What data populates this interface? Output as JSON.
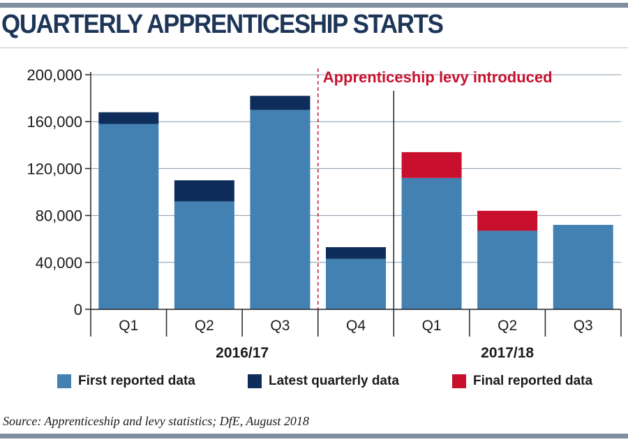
{
  "title": "QUARTERLY APPRENTICESHIP STARTS",
  "source": "Source: Apprenticeship and levy statistics; DfE, August 2018",
  "colors": {
    "first_reported": "#4281b2",
    "latest_quarterly": "#0f2d5a",
    "final_reported": "#c8102e",
    "annotation": "#c8102e",
    "grid": "#8a9aaa",
    "axis": "#222222",
    "title": "#1d3557"
  },
  "chart_data": {
    "type": "bar",
    "stacked": true,
    "title": "QUARTERLY APPRENTICESHIP STARTS",
    "xlabel": "",
    "ylabel": "",
    "ylim": [
      0,
      200000
    ],
    "yticks": [
      0,
      40000,
      80000,
      120000,
      160000,
      200000
    ],
    "ytick_labels": [
      "0",
      "40,000",
      "80,000",
      "120,000",
      "160,000",
      "200,000"
    ],
    "grid": true,
    "legend_position": "bottom",
    "categories": [
      "Q1",
      "Q2",
      "Q3",
      "Q4",
      "Q1",
      "Q2",
      "Q3"
    ],
    "groups": [
      {
        "label": "2016/17",
        "categories": [
          "Q1",
          "Q2",
          "Q3",
          "Q4"
        ]
      },
      {
        "label": "2017/18",
        "categories": [
          "Q1",
          "Q2",
          "Q3"
        ]
      }
    ],
    "series": [
      {
        "name": "First reported data",
        "color": "#4281b2",
        "values": [
          158000,
          92000,
          170000,
          43000,
          112000,
          67000,
          72000
        ]
      },
      {
        "name": "Latest quarterly data",
        "color": "#0f2d5a",
        "values": [
          10000,
          18000,
          12000,
          10000,
          0,
          0,
          0
        ]
      },
      {
        "name": "Final reported data",
        "color": "#c8102e",
        "values": [
          0,
          0,
          0,
          0,
          22000,
          17000,
          0
        ]
      }
    ],
    "annotations": [
      {
        "text": "Apprenticeship levy introduced",
        "position": "between Q3 and Q4 of 2016/17",
        "style": "dashed line"
      }
    ]
  }
}
